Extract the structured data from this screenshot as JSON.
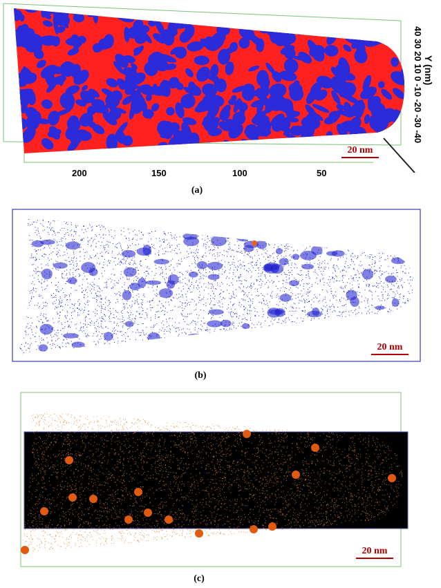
{
  "panels": {
    "a": {
      "caption": "(a)",
      "scalebar": "20 nm",
      "x_ticks": [
        "200",
        "150",
        "100",
        "50"
      ],
      "y_axis_title": "Y (nm)",
      "y_ticks": "40 30 20 10 0 -10 -20 -30 -40",
      "colors": {
        "phase1": "#ff2020",
        "phase2": "#2b2bd9"
      }
    },
    "b": {
      "caption": "(b)",
      "scalebar": "20 nm",
      "colors": {
        "atoms": "#1a1acc",
        "cluster": "#e8611a",
        "frame": "#3a3aaa"
      }
    },
    "c": {
      "caption": "(c)",
      "scalebar": "20 nm",
      "colors": {
        "atoms": "#d9863a",
        "clusters": "#e05a10"
      }
    }
  }
}
